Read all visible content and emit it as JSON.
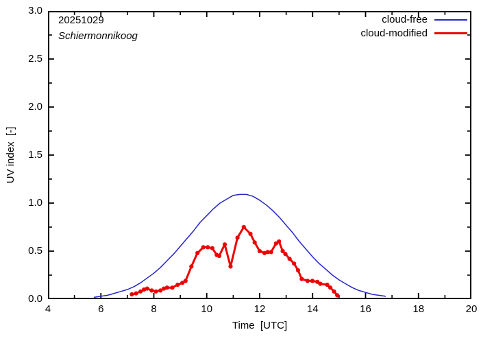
{
  "chart_data": {
    "type": "line",
    "title_date": "20251029",
    "station": "Schiermonnikoog",
    "xlabel": "Time  [UTC]",
    "ylabel": "UV index  [-]",
    "xlim": [
      4,
      20
    ],
    "ylim": [
      0,
      3.0
    ],
    "x_major_ticks": [
      4,
      6,
      8,
      10,
      12,
      14,
      16,
      18,
      20
    ],
    "x_minor_ticks": [
      5,
      7,
      9,
      11,
      13,
      15,
      17,
      19
    ],
    "y_major_ticks": [
      0.0,
      0.5,
      1.0,
      1.5,
      2.0,
      2.5,
      3.0
    ],
    "y_major_tick_labels": [
      "0.0",
      "0.5",
      "1.0",
      "1.5",
      "2.0",
      "2.5",
      "3.0"
    ],
    "y_minor_ticks": [
      0.25,
      0.75,
      1.25,
      1.75,
      2.25,
      2.75
    ],
    "grid": false,
    "legend_position": "top-right-inside",
    "axis_color": "#000000",
    "series": [
      {
        "name": "cloud-free",
        "color": "#2525cc",
        "style": "line",
        "line_width": 1.5,
        "points": [
          [
            5.75,
            0.02
          ],
          [
            6.0,
            0.03
          ],
          [
            6.25,
            0.04
          ],
          [
            6.5,
            0.06
          ],
          [
            6.75,
            0.08
          ],
          [
            7.0,
            0.1
          ],
          [
            7.25,
            0.13
          ],
          [
            7.5,
            0.17
          ],
          [
            7.75,
            0.22
          ],
          [
            8.0,
            0.27
          ],
          [
            8.25,
            0.33
          ],
          [
            8.5,
            0.4
          ],
          [
            8.75,
            0.47
          ],
          [
            9.0,
            0.55
          ],
          [
            9.25,
            0.63
          ],
          [
            9.5,
            0.71
          ],
          [
            9.75,
            0.8
          ],
          [
            10.0,
            0.87
          ],
          [
            10.25,
            0.94
          ],
          [
            10.5,
            1.0
          ],
          [
            10.75,
            1.04
          ],
          [
            11.0,
            1.08
          ],
          [
            11.25,
            1.09
          ],
          [
            11.5,
            1.09
          ],
          [
            11.75,
            1.07
          ],
          [
            12.0,
            1.03
          ],
          [
            12.25,
            0.98
          ],
          [
            12.5,
            0.92
          ],
          [
            12.75,
            0.85
          ],
          [
            13.0,
            0.77
          ],
          [
            13.25,
            0.69
          ],
          [
            13.5,
            0.6
          ],
          [
            13.75,
            0.52
          ],
          [
            14.0,
            0.44
          ],
          [
            14.25,
            0.37
          ],
          [
            14.5,
            0.31
          ],
          [
            14.75,
            0.25
          ],
          [
            15.0,
            0.2
          ],
          [
            15.25,
            0.16
          ],
          [
            15.5,
            0.12
          ],
          [
            15.75,
            0.09
          ],
          [
            16.0,
            0.07
          ],
          [
            16.25,
            0.05
          ],
          [
            16.5,
            0.04
          ],
          [
            16.75,
            0.03
          ]
        ]
      },
      {
        "name": "cloud-modified",
        "color": "#ee0000",
        "style": "line+markers",
        "line_width": 3,
        "marker": "filled-circle",
        "points": [
          [
            7.17,
            0.05
          ],
          [
            7.33,
            0.06
          ],
          [
            7.5,
            0.08
          ],
          [
            7.63,
            0.1
          ],
          [
            7.75,
            0.11
          ],
          [
            7.92,
            0.09
          ],
          [
            8.08,
            0.08
          ],
          [
            8.25,
            0.09
          ],
          [
            8.38,
            0.11
          ],
          [
            8.5,
            0.12
          ],
          [
            8.7,
            0.12
          ],
          [
            8.9,
            0.15
          ],
          [
            9.08,
            0.17
          ],
          [
            9.2,
            0.19
          ],
          [
            9.42,
            0.34
          ],
          [
            9.65,
            0.48
          ],
          [
            9.87,
            0.54
          ],
          [
            10.04,
            0.54
          ],
          [
            10.21,
            0.53
          ],
          [
            10.38,
            0.46
          ],
          [
            10.47,
            0.45
          ],
          [
            10.68,
            0.57
          ],
          [
            10.9,
            0.34
          ],
          [
            11.16,
            0.64
          ],
          [
            11.4,
            0.75
          ],
          [
            11.65,
            0.68
          ],
          [
            11.81,
            0.59
          ],
          [
            12.0,
            0.5
          ],
          [
            12.18,
            0.48
          ],
          [
            12.3,
            0.49
          ],
          [
            12.43,
            0.49
          ],
          [
            12.62,
            0.58
          ],
          [
            12.73,
            0.6
          ],
          [
            12.87,
            0.5
          ],
          [
            12.97,
            0.47
          ],
          [
            13.13,
            0.42
          ],
          [
            13.3,
            0.37
          ],
          [
            13.45,
            0.3
          ],
          [
            13.59,
            0.21
          ],
          [
            13.81,
            0.19
          ],
          [
            13.99,
            0.19
          ],
          [
            14.18,
            0.18
          ],
          [
            14.29,
            0.16
          ],
          [
            14.55,
            0.15
          ],
          [
            14.67,
            0.12
          ],
          [
            14.81,
            0.08
          ],
          [
            14.93,
            0.04
          ]
        ]
      }
    ]
  }
}
